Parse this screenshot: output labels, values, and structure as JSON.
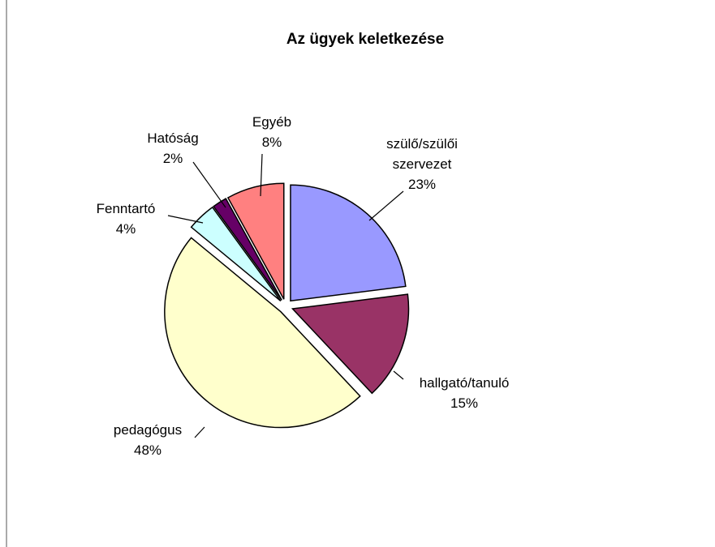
{
  "chart_data": {
    "type": "pie",
    "title": "Az ügyek keletkezése",
    "categories": [
      "szülő/szülői szervezet",
      "hallgató/tanuló",
      "pedagógus",
      "Fenntartó",
      "Hatóság",
      "Egyéb"
    ],
    "values": [
      23,
      15,
      48,
      4,
      2,
      8
    ],
    "value_labels": [
      "23%",
      "15%",
      "48%",
      "4%",
      "2%",
      "8%"
    ],
    "colors": [
      "#9999ff",
      "#993366",
      "#ffffcc",
      "#ccffff",
      "#660066",
      "#ff8080"
    ]
  }
}
